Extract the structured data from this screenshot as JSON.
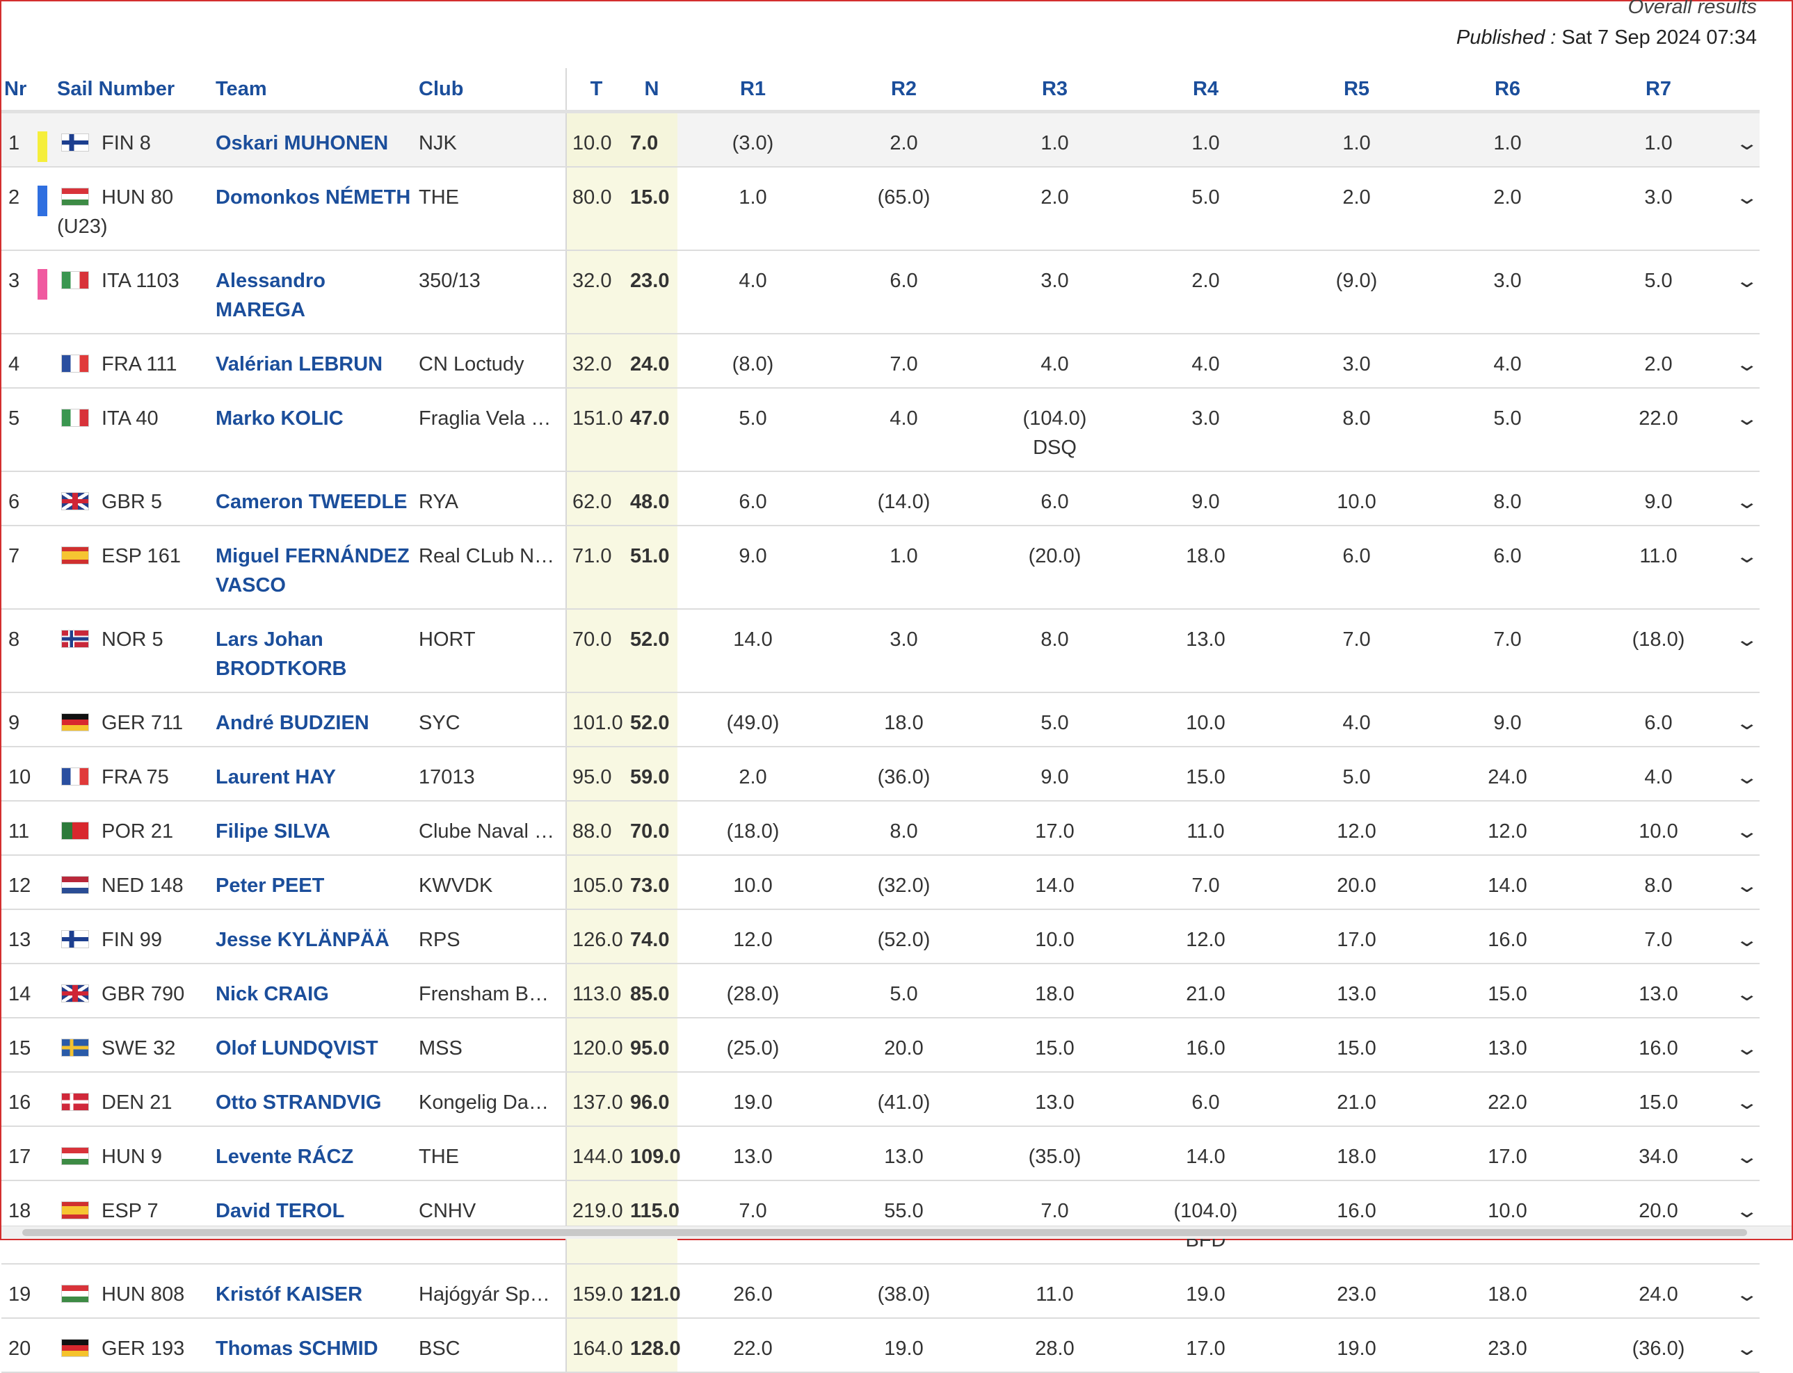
{
  "header": {
    "title": "Overall results",
    "published_label": "Published :",
    "published_value": "Sat 7 Sep 2024 07:34"
  },
  "columns": {
    "nr": "Nr",
    "sail": "Sail Number",
    "team": "Team",
    "club": "Club",
    "t": "T",
    "n": "N",
    "r1": "R1",
    "r2": "R2",
    "r3": "R3",
    "r4": "R4",
    "r5": "R5",
    "r6": "R6",
    "r7": "R7"
  },
  "highlight_colors": {
    "1": "#f5ee3b",
    "2": "#2f6fe0",
    "3": "#f05aa0"
  },
  "rows": [
    {
      "nr": "1",
      "country": "FIN",
      "sail": "FIN 8",
      "sail_sub": "",
      "team": "Oskari MUHONEN",
      "club": "NJK",
      "t": "10.0",
      "n": "7.0",
      "races": [
        {
          "v": "(3.0)",
          "c": ""
        },
        {
          "v": "2.0",
          "c": ""
        },
        {
          "v": "1.0",
          "c": ""
        },
        {
          "v": "1.0",
          "c": ""
        },
        {
          "v": "1.0",
          "c": ""
        },
        {
          "v": "1.0",
          "c": ""
        },
        {
          "v": "1.0",
          "c": ""
        }
      ]
    },
    {
      "nr": "2",
      "country": "HUN",
      "sail": "HUN 80",
      "sail_sub": "(U23)",
      "team": "Domonkos NÉMETH",
      "club": "THE",
      "t": "80.0",
      "n": "15.0",
      "races": [
        {
          "v": "1.0",
          "c": ""
        },
        {
          "v": "(65.0)",
          "c": ""
        },
        {
          "v": "2.0",
          "c": ""
        },
        {
          "v": "5.0",
          "c": ""
        },
        {
          "v": "2.0",
          "c": ""
        },
        {
          "v": "2.0",
          "c": ""
        },
        {
          "v": "3.0",
          "c": ""
        }
      ]
    },
    {
      "nr": "3",
      "country": "ITA",
      "sail": "ITA 1103",
      "sail_sub": "",
      "team": "Alessandro MAREGA",
      "club": "350/13",
      "t": "32.0",
      "n": "23.0",
      "races": [
        {
          "v": "4.0",
          "c": ""
        },
        {
          "v": "6.0",
          "c": ""
        },
        {
          "v": "3.0",
          "c": ""
        },
        {
          "v": "2.0",
          "c": ""
        },
        {
          "v": "(9.0)",
          "c": ""
        },
        {
          "v": "3.0",
          "c": ""
        },
        {
          "v": "5.0",
          "c": ""
        }
      ]
    },
    {
      "nr": "4",
      "country": "FRA",
      "sail": "FRA 111",
      "sail_sub": "",
      "team": "Valérian LEBRUN",
      "club": "CN Loctudy",
      "t": "32.0",
      "n": "24.0",
      "races": [
        {
          "v": "(8.0)",
          "c": ""
        },
        {
          "v": "7.0",
          "c": ""
        },
        {
          "v": "4.0",
          "c": ""
        },
        {
          "v": "4.0",
          "c": ""
        },
        {
          "v": "3.0",
          "c": ""
        },
        {
          "v": "4.0",
          "c": ""
        },
        {
          "v": "2.0",
          "c": ""
        }
      ]
    },
    {
      "nr": "5",
      "country": "ITA",
      "sail": "ITA 40",
      "sail_sub": "",
      "team": "Marko KOLIC",
      "club": "Fraglia Vela …",
      "t": "151.0",
      "n": "47.0",
      "races": [
        {
          "v": "5.0",
          "c": ""
        },
        {
          "v": "4.0",
          "c": ""
        },
        {
          "v": "(104.0)",
          "c": "DSQ"
        },
        {
          "v": "3.0",
          "c": ""
        },
        {
          "v": "8.0",
          "c": ""
        },
        {
          "v": "5.0",
          "c": ""
        },
        {
          "v": "22.0",
          "c": ""
        }
      ]
    },
    {
      "nr": "6",
      "country": "GBR",
      "sail": "GBR 5",
      "sail_sub": "",
      "team": "Cameron TWEEDLE",
      "club": "RYA",
      "t": "62.0",
      "n": "48.0",
      "races": [
        {
          "v": "6.0",
          "c": ""
        },
        {
          "v": "(14.0)",
          "c": ""
        },
        {
          "v": "6.0",
          "c": ""
        },
        {
          "v": "9.0",
          "c": ""
        },
        {
          "v": "10.0",
          "c": ""
        },
        {
          "v": "8.0",
          "c": ""
        },
        {
          "v": "9.0",
          "c": ""
        }
      ]
    },
    {
      "nr": "7",
      "country": "ESP",
      "sail": "ESP 161",
      "sail_sub": "",
      "team": "Miguel FERNÁNDEZ VASCO",
      "club": "Real CLub N…",
      "t": "71.0",
      "n": "51.0",
      "races": [
        {
          "v": "9.0",
          "c": ""
        },
        {
          "v": "1.0",
          "c": ""
        },
        {
          "v": "(20.0)",
          "c": ""
        },
        {
          "v": "18.0",
          "c": ""
        },
        {
          "v": "6.0",
          "c": ""
        },
        {
          "v": "6.0",
          "c": ""
        },
        {
          "v": "11.0",
          "c": ""
        }
      ]
    },
    {
      "nr": "8",
      "country": "NOR",
      "sail": "NOR 5",
      "sail_sub": "",
      "team": "Lars Johan BRODTKORB",
      "club": "HORT",
      "t": "70.0",
      "n": "52.0",
      "races": [
        {
          "v": "14.0",
          "c": ""
        },
        {
          "v": "3.0",
          "c": ""
        },
        {
          "v": "8.0",
          "c": ""
        },
        {
          "v": "13.0",
          "c": ""
        },
        {
          "v": "7.0",
          "c": ""
        },
        {
          "v": "7.0",
          "c": ""
        },
        {
          "v": "(18.0)",
          "c": ""
        }
      ]
    },
    {
      "nr": "9",
      "country": "GER",
      "sail": "GER 711",
      "sail_sub": "",
      "team": "André BUDZIEN",
      "club": "SYC",
      "t": "101.0",
      "n": "52.0",
      "races": [
        {
          "v": "(49.0)",
          "c": ""
        },
        {
          "v": "18.0",
          "c": ""
        },
        {
          "v": "5.0",
          "c": ""
        },
        {
          "v": "10.0",
          "c": ""
        },
        {
          "v": "4.0",
          "c": ""
        },
        {
          "v": "9.0",
          "c": ""
        },
        {
          "v": "6.0",
          "c": ""
        }
      ]
    },
    {
      "nr": "10",
      "country": "FRA",
      "sail": "FRA 75",
      "sail_sub": "",
      "team": "Laurent HAY",
      "club": "17013",
      "t": "95.0",
      "n": "59.0",
      "races": [
        {
          "v": "2.0",
          "c": ""
        },
        {
          "v": "(36.0)",
          "c": ""
        },
        {
          "v": "9.0",
          "c": ""
        },
        {
          "v": "15.0",
          "c": ""
        },
        {
          "v": "5.0",
          "c": ""
        },
        {
          "v": "24.0",
          "c": ""
        },
        {
          "v": "4.0",
          "c": ""
        }
      ]
    },
    {
      "nr": "11",
      "country": "POR",
      "sail": "POR 21",
      "sail_sub": "",
      "team": "Filipe SILVA",
      "club": "Clube Naval …",
      "t": "88.0",
      "n": "70.0",
      "races": [
        {
          "v": "(18.0)",
          "c": ""
        },
        {
          "v": "8.0",
          "c": ""
        },
        {
          "v": "17.0",
          "c": ""
        },
        {
          "v": "11.0",
          "c": ""
        },
        {
          "v": "12.0",
          "c": ""
        },
        {
          "v": "12.0",
          "c": ""
        },
        {
          "v": "10.0",
          "c": ""
        }
      ]
    },
    {
      "nr": "12",
      "country": "NED",
      "sail": "NED 148",
      "sail_sub": "",
      "team": "Peter PEET",
      "club": "KWVDK",
      "t": "105.0",
      "n": "73.0",
      "races": [
        {
          "v": "10.0",
          "c": ""
        },
        {
          "v": "(32.0)",
          "c": ""
        },
        {
          "v": "14.0",
          "c": ""
        },
        {
          "v": "7.0",
          "c": ""
        },
        {
          "v": "20.0",
          "c": ""
        },
        {
          "v": "14.0",
          "c": ""
        },
        {
          "v": "8.0",
          "c": ""
        }
      ]
    },
    {
      "nr": "13",
      "country": "FIN",
      "sail": "FIN 99",
      "sail_sub": "",
      "team": "Jesse KYLÄNPÄÄ",
      "club": "RPS",
      "t": "126.0",
      "n": "74.0",
      "races": [
        {
          "v": "12.0",
          "c": ""
        },
        {
          "v": "(52.0)",
          "c": ""
        },
        {
          "v": "10.0",
          "c": ""
        },
        {
          "v": "12.0",
          "c": ""
        },
        {
          "v": "17.0",
          "c": ""
        },
        {
          "v": "16.0",
          "c": ""
        },
        {
          "v": "7.0",
          "c": ""
        }
      ]
    },
    {
      "nr": "14",
      "country": "GBR",
      "sail": "GBR 790",
      "sail_sub": "",
      "team": "Nick CRAIG",
      "club": "Frensham B…",
      "t": "113.0",
      "n": "85.0",
      "races": [
        {
          "v": "(28.0)",
          "c": ""
        },
        {
          "v": "5.0",
          "c": ""
        },
        {
          "v": "18.0",
          "c": ""
        },
        {
          "v": "21.0",
          "c": ""
        },
        {
          "v": "13.0",
          "c": ""
        },
        {
          "v": "15.0",
          "c": ""
        },
        {
          "v": "13.0",
          "c": ""
        }
      ]
    },
    {
      "nr": "15",
      "country": "SWE",
      "sail": "SWE 32",
      "sail_sub": "",
      "team": "Olof LUNDQVIST",
      "club": "MSS",
      "t": "120.0",
      "n": "95.0",
      "races": [
        {
          "v": "(25.0)",
          "c": ""
        },
        {
          "v": "20.0",
          "c": ""
        },
        {
          "v": "15.0",
          "c": ""
        },
        {
          "v": "16.0",
          "c": ""
        },
        {
          "v": "15.0",
          "c": ""
        },
        {
          "v": "13.0",
          "c": ""
        },
        {
          "v": "16.0",
          "c": ""
        }
      ]
    },
    {
      "nr": "16",
      "country": "DEN",
      "sail": "DEN 21",
      "sail_sub": "",
      "team": "Otto STRANDVIG",
      "club": "Kongelig Da…",
      "t": "137.0",
      "n": "96.0",
      "races": [
        {
          "v": "19.0",
          "c": ""
        },
        {
          "v": "(41.0)",
          "c": ""
        },
        {
          "v": "13.0",
          "c": ""
        },
        {
          "v": "6.0",
          "c": ""
        },
        {
          "v": "21.0",
          "c": ""
        },
        {
          "v": "22.0",
          "c": ""
        },
        {
          "v": "15.0",
          "c": ""
        }
      ]
    },
    {
      "nr": "17",
      "country": "HUN",
      "sail": "HUN 9",
      "sail_sub": "",
      "team": "Levente RÁCZ",
      "club": "THE",
      "t": "144.0",
      "n": "109.0",
      "races": [
        {
          "v": "13.0",
          "c": ""
        },
        {
          "v": "13.0",
          "c": ""
        },
        {
          "v": "(35.0)",
          "c": ""
        },
        {
          "v": "14.0",
          "c": ""
        },
        {
          "v": "18.0",
          "c": ""
        },
        {
          "v": "17.0",
          "c": ""
        },
        {
          "v": "34.0",
          "c": ""
        }
      ]
    },
    {
      "nr": "18",
      "country": "ESP",
      "sail": "ESP 7",
      "sail_sub": "",
      "team": "David TEROL",
      "club": "CNHV",
      "t": "219.0",
      "n": "115.0",
      "races": [
        {
          "v": "7.0",
          "c": ""
        },
        {
          "v": "55.0",
          "c": ""
        },
        {
          "v": "7.0",
          "c": ""
        },
        {
          "v": "(104.0)",
          "c": "BFD"
        },
        {
          "v": "16.0",
          "c": ""
        },
        {
          "v": "10.0",
          "c": ""
        },
        {
          "v": "20.0",
          "c": ""
        }
      ]
    },
    {
      "nr": "19",
      "country": "HUN",
      "sail": "HUN 808",
      "sail_sub": "",
      "team": "Kristóf KAISER",
      "club": "Hajógyár Sp…",
      "t": "159.0",
      "n": "121.0",
      "races": [
        {
          "v": "26.0",
          "c": ""
        },
        {
          "v": "(38.0)",
          "c": ""
        },
        {
          "v": "11.0",
          "c": ""
        },
        {
          "v": "19.0",
          "c": ""
        },
        {
          "v": "23.0",
          "c": ""
        },
        {
          "v": "18.0",
          "c": ""
        },
        {
          "v": "24.0",
          "c": ""
        }
      ]
    },
    {
      "nr": "20",
      "country": "GER",
      "sail": "GER 193",
      "sail_sub": "",
      "team": "Thomas SCHMID",
      "club": "BSC",
      "t": "164.0",
      "n": "128.0",
      "races": [
        {
          "v": "22.0",
          "c": ""
        },
        {
          "v": "19.0",
          "c": ""
        },
        {
          "v": "28.0",
          "c": ""
        },
        {
          "v": "17.0",
          "c": ""
        },
        {
          "v": "19.0",
          "c": ""
        },
        {
          "v": "23.0",
          "c": ""
        },
        {
          "v": "(36.0)",
          "c": ""
        }
      ]
    }
  ]
}
